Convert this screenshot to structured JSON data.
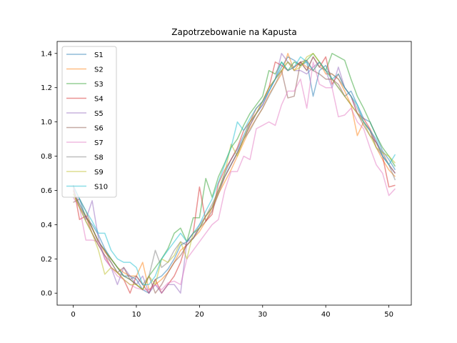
{
  "chart_data": {
    "type": "line",
    "title": "Zapotrzebowanie na Kapusta",
    "xlabel": "",
    "ylabel": "",
    "xlim": [
      -2.55,
      53.55
    ],
    "ylim": [
      -0.07,
      1.47
    ],
    "xticks": [
      0,
      10,
      20,
      30,
      40,
      50
    ],
    "yticks": [
      0.0,
      0.2,
      0.4,
      0.6,
      0.8,
      1.0,
      1.2,
      1.4
    ],
    "ytick_labels": [
      "0.0",
      "0.2",
      "0.4",
      "0.6",
      "0.8",
      "1.0",
      "1.2",
      "1.4"
    ],
    "grid": false,
    "legend_position": "top-left",
    "x": [
      0,
      1,
      2,
      3,
      4,
      5,
      6,
      7,
      8,
      9,
      10,
      11,
      12,
      13,
      14,
      15,
      16,
      17,
      18,
      19,
      20,
      21,
      22,
      23,
      24,
      25,
      26,
      27,
      28,
      29,
      30,
      31,
      32,
      33,
      34,
      35,
      36,
      37,
      38,
      39,
      40,
      41,
      42,
      43,
      44,
      45,
      46,
      47,
      48,
      49,
      50,
      51
    ],
    "series": [
      {
        "name": "S1",
        "color": "#1f77b4",
        "values": [
          0.63,
          0.55,
          0.44,
          0.4,
          0.34,
          0.26,
          0.2,
          0.15,
          0.1,
          0.1,
          0.08,
          0.02,
          0.0,
          0.08,
          0.1,
          0.14,
          0.2,
          0.28,
          0.3,
          0.35,
          0.38,
          0.45,
          0.5,
          0.6,
          0.7,
          0.78,
          0.84,
          0.92,
          1.0,
          1.05,
          1.1,
          1.18,
          1.25,
          1.32,
          1.38,
          1.36,
          1.33,
          1.35,
          1.15,
          1.3,
          1.33,
          1.25,
          1.2,
          1.15,
          1.18,
          1.1,
          1.02,
          1.0,
          0.92,
          0.83,
          0.78,
          0.72
        ]
      },
      {
        "name": "S2",
        "color": "#ff7f0e",
        "values": [
          0.6,
          0.5,
          0.45,
          0.38,
          0.3,
          0.24,
          0.2,
          0.15,
          0.12,
          0.1,
          0.1,
          0.18,
          0.02,
          0.05,
          0.08,
          0.12,
          0.18,
          0.25,
          0.28,
          0.32,
          0.36,
          0.42,
          0.5,
          0.58,
          0.65,
          0.72,
          0.8,
          0.88,
          0.96,
          1.02,
          1.08,
          1.16,
          1.22,
          1.28,
          1.4,
          1.3,
          1.35,
          1.32,
          1.3,
          1.35,
          1.28,
          1.28,
          1.25,
          1.18,
          1.1,
          0.92,
          1.0,
          0.95,
          0.85,
          0.78,
          0.72,
          0.68
        ]
      },
      {
        "name": "S3",
        "color": "#2ca02c",
        "values": [
          0.58,
          0.52,
          0.45,
          0.38,
          0.3,
          0.25,
          0.2,
          0.15,
          0.1,
          0.08,
          0.05,
          0.02,
          0.1,
          0.15,
          0.2,
          0.26,
          0.35,
          0.38,
          0.3,
          0.44,
          0.44,
          0.67,
          0.56,
          0.68,
          0.76,
          0.85,
          0.9,
          0.98,
          1.05,
          1.1,
          1.15,
          1.3,
          1.28,
          1.35,
          1.3,
          1.35,
          1.33,
          1.36,
          1.4,
          1.35,
          1.3,
          1.4,
          1.38,
          1.36,
          1.25,
          1.15,
          1.08,
          1.0,
          0.92,
          0.85,
          0.8,
          0.74
        ]
      },
      {
        "name": "S4",
        "color": "#d62728",
        "values": [
          0.63,
          0.43,
          0.45,
          0.35,
          0.28,
          0.22,
          0.15,
          0.12,
          0.08,
          0.0,
          0.1,
          0.05,
          0.0,
          0.08,
          0.0,
          0.05,
          0.1,
          0.18,
          0.3,
          0.35,
          0.62,
          0.42,
          0.46,
          0.64,
          0.72,
          0.78,
          0.85,
          0.95,
          1.0,
          1.08,
          1.12,
          1.2,
          1.35,
          1.33,
          1.3,
          1.32,
          1.35,
          1.3,
          1.38,
          1.32,
          1.38,
          1.22,
          1.28,
          1.2,
          1.15,
          1.05,
          1.02,
          0.96,
          0.88,
          0.8,
          0.62,
          0.63
        ]
      },
      {
        "name": "S5",
        "color": "#9467bd",
        "values": [
          0.61,
          0.52,
          0.43,
          0.54,
          0.32,
          0.2,
          0.15,
          0.05,
          0.15,
          0.1,
          0.05,
          0.1,
          0.0,
          0.05,
          0.0,
          0.05,
          0.05,
          0.0,
          0.3,
          0.32,
          0.4,
          0.45,
          0.5,
          0.6,
          0.68,
          0.75,
          0.82,
          0.9,
          0.98,
          1.05,
          1.1,
          1.18,
          1.25,
          1.4,
          1.35,
          1.3,
          1.3,
          1.28,
          1.32,
          1.35,
          1.3,
          1.2,
          1.32,
          1.2,
          1.15,
          1.05,
          1.0,
          0.95,
          0.88,
          0.8,
          0.75,
          0.7
        ]
      },
      {
        "name": "S6",
        "color": "#8c564b",
        "values": [
          0.53,
          0.55,
          0.48,
          0.38,
          0.3,
          0.25,
          0.18,
          0.12,
          0.15,
          0.08,
          0.05,
          0.02,
          0.1,
          0.0,
          0.05,
          0.12,
          0.18,
          0.22,
          0.28,
          0.32,
          0.38,
          0.42,
          0.48,
          0.58,
          0.68,
          0.75,
          0.82,
          0.9,
          0.98,
          1.05,
          1.12,
          1.2,
          1.25,
          1.3,
          1.14,
          1.15,
          1.35,
          1.36,
          1.3,
          1.28,
          1.25,
          1.25,
          1.22,
          1.15,
          1.1,
          1.05,
          0.98,
          0.92,
          0.88,
          0.82,
          0.75,
          0.7
        ]
      },
      {
        "name": "S7",
        "color": "#e377c2",
        "values": [
          0.56,
          0.5,
          0.31,
          0.31,
          0.3,
          0.2,
          0.15,
          0.1,
          0.08,
          0.05,
          0.03,
          0.02,
          0.02,
          0.05,
          0.02,
          0.06,
          0.07,
          0.05,
          0.2,
          0.25,
          0.3,
          0.35,
          0.4,
          0.43,
          0.6,
          0.71,
          0.71,
          0.8,
          0.78,
          0.96,
          0.98,
          1.0,
          0.98,
          1.1,
          1.18,
          1.18,
          1.25,
          1.08,
          1.35,
          1.22,
          1.2,
          1.2,
          1.03,
          1.04,
          1.08,
          1.0,
          0.96,
          0.85,
          0.75,
          0.7,
          0.57,
          0.61
        ]
      },
      {
        "name": "S8",
        "color": "#7f7f7f",
        "values": [
          0.6,
          0.5,
          0.42,
          0.35,
          0.28,
          0.22,
          0.18,
          0.12,
          0.1,
          0.08,
          0.1,
          0.05,
          0.1,
          0.25,
          0.15,
          0.18,
          0.25,
          0.3,
          0.28,
          0.32,
          0.38,
          0.45,
          0.52,
          0.6,
          0.68,
          0.75,
          0.82,
          0.9,
          0.95,
          1.02,
          1.08,
          1.15,
          1.22,
          1.3,
          1.35,
          1.32,
          1.35,
          1.3,
          1.38,
          1.32,
          1.3,
          1.28,
          1.25,
          1.2,
          1.15,
          1.08,
          1.0,
          0.95,
          0.85,
          0.8,
          0.75,
          0.66
        ]
      },
      {
        "name": "S9",
        "color": "#bcbd22",
        "values": [
          0.58,
          0.5,
          0.42,
          0.35,
          0.25,
          0.11,
          0.15,
          0.12,
          0.08,
          0.05,
          0.05,
          0.02,
          0.1,
          0.05,
          0.2,
          0.18,
          0.22,
          0.3,
          0.2,
          0.35,
          0.38,
          0.45,
          0.5,
          0.6,
          0.7,
          0.87,
          0.8,
          0.9,
          1.0,
          1.05,
          1.12,
          1.2,
          1.25,
          1.3,
          1.35,
          1.3,
          1.32,
          1.38,
          1.4,
          1.35,
          1.3,
          1.25,
          1.2,
          1.15,
          1.1,
          1.05,
          1.0,
          0.92,
          0.85,
          0.82,
          0.8,
          0.76
        ]
      },
      {
        "name": "S10",
        "color": "#17becf",
        "values": [
          0.62,
          0.55,
          0.48,
          0.42,
          0.35,
          0.35,
          0.25,
          0.2,
          0.18,
          0.18,
          0.15,
          0.05,
          0.05,
          0.1,
          0.2,
          0.25,
          0.3,
          0.35,
          0.3,
          0.35,
          0.4,
          0.48,
          0.55,
          0.65,
          0.75,
          0.85,
          1.0,
          0.95,
          1.02,
          1.08,
          1.12,
          1.18,
          1.25,
          1.35,
          1.3,
          1.32,
          1.38,
          1.35,
          1.3,
          1.35,
          1.3,
          1.25,
          1.28,
          1.2,
          1.15,
          1.1,
          1.0,
          0.95,
          0.9,
          0.8,
          0.75,
          0.81
        ]
      }
    ]
  }
}
